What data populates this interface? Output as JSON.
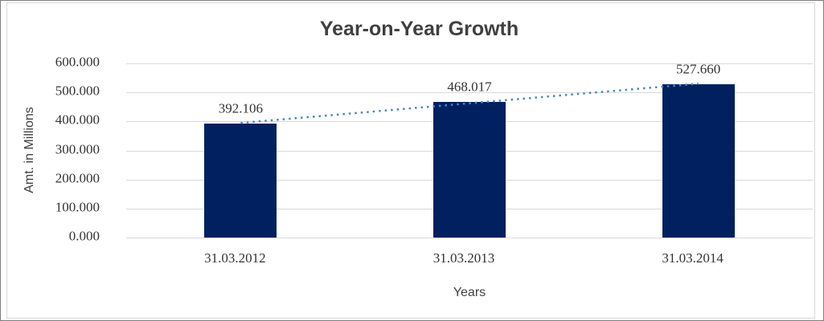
{
  "chart_data": {
    "type": "bar",
    "title": "Year-on-Year Growth",
    "xlabel": "Years",
    "ylabel": "Amt. in Millions",
    "categories": [
      "31.03.2012",
      "31.03.2013",
      "31.03.2014"
    ],
    "values": [
      392.106,
      468.017,
      527.66
    ],
    "data_labels": [
      "392.106",
      "468.017",
      "527.660"
    ],
    "ylim": [
      0,
      600
    ],
    "ytick_step": 100,
    "ytick_labels": [
      "0.000",
      "100.000",
      "200.000",
      "300.000",
      "400.000",
      "500.000",
      "600.000"
    ],
    "grid": true,
    "legend": "none",
    "series_name": "Amt. in Millions",
    "bar_color": "#002060",
    "gridline_color": "#d9d9d9",
    "trendline": {
      "type": "linear",
      "style": "dotted",
      "color": "#4a86c8",
      "fit_endpoints": [
        394.817,
        530.371
      ]
    },
    "colors": {
      "title_text": "#404040",
      "axis_text": "#333333",
      "frame_border": "#d9d9d9",
      "outer_border": "#7f7f7f"
    }
  }
}
